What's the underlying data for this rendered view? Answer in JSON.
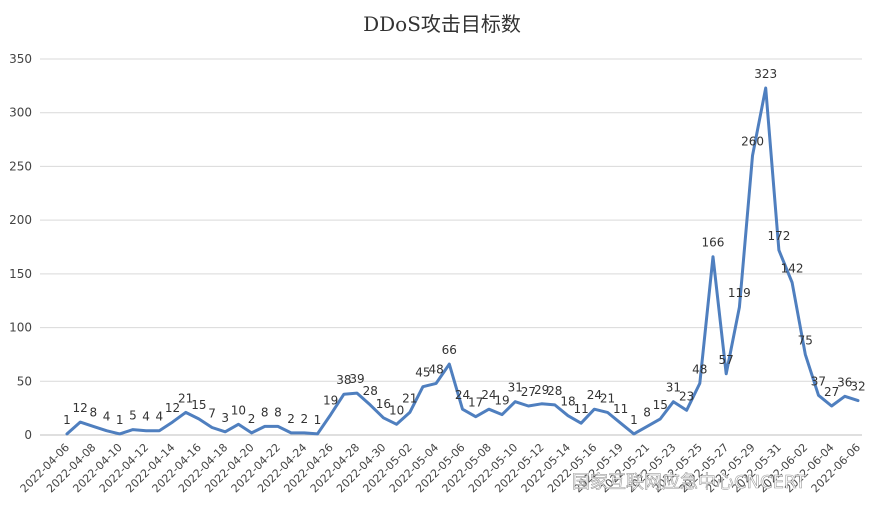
{
  "chart_data": {
    "type": "line",
    "title": "DDoS攻击目标数",
    "xlabel": "",
    "ylabel": "",
    "ylim": [
      0,
      350
    ],
    "yticks": [
      0,
      50,
      100,
      150,
      200,
      250,
      300,
      350
    ],
    "grid": true,
    "legend": "none",
    "line_color": "#4f7fbf",
    "x": [
      "2022-04-06",
      "2022-04-07",
      "2022-04-08",
      "2022-04-09",
      "2022-04-10",
      "2022-04-11",
      "2022-04-12",
      "2022-04-13",
      "2022-04-14",
      "2022-04-15",
      "2022-04-16",
      "2022-04-17",
      "2022-04-18",
      "2022-04-19",
      "2022-04-20",
      "2022-04-21",
      "2022-04-22",
      "2022-04-23",
      "2022-04-24",
      "2022-04-25",
      "2022-04-26",
      "2022-04-27",
      "2022-04-28",
      "2022-04-29",
      "2022-04-30",
      "2022-05-01",
      "2022-05-02",
      "2022-05-03",
      "2022-05-04",
      "2022-05-05",
      "2022-05-06",
      "2022-05-07",
      "2022-05-08",
      "2022-05-09",
      "2022-05-10",
      "2022-05-11",
      "2022-05-12",
      "2022-05-13",
      "2022-05-14",
      "2022-05-15",
      "2022-05-16",
      "2022-05-17",
      "2022-05-19",
      "2022-05-20",
      "2022-05-21",
      "2022-05-22",
      "2022-05-23",
      "2022-05-24",
      "2022-05-25",
      "2022-05-26",
      "2022-05-27",
      "2022-05-28",
      "2022-05-29",
      "2022-05-30",
      "2022-05-31",
      "2022-06-01",
      "2022-06-02",
      "2022-06-03",
      "2022-06-04",
      "2022-06-05",
      "2022-06-06"
    ],
    "xtick_labels": [
      "2022-04-06",
      "2022-04-08",
      "2022-04-10",
      "2022-04-12",
      "2022-04-14",
      "2022-04-16",
      "2022-04-18",
      "2022-04-20",
      "2022-04-22",
      "2022-04-24",
      "2022-04-26",
      "2022-04-28",
      "2022-04-30",
      "2022-05-02",
      "2022-05-04",
      "2022-05-06",
      "2022-05-08",
      "2022-05-10",
      "2022-05-12",
      "2022-05-14",
      "2022-05-16",
      "2022-05-19",
      "2022-05-21",
      "2022-05-23",
      "2022-05-25",
      "2022-05-27",
      "2022-05-29",
      "2022-05-31",
      "2022-06-02",
      "2022-06-04",
      "2022-06-06"
    ],
    "values": [
      1,
      12,
      8,
      4,
      1,
      5,
      4,
      4,
      12,
      21,
      15,
      7,
      3,
      10,
      2,
      8,
      8,
      2,
      2,
      1,
      19,
      38,
      39,
      28,
      16,
      10,
      21,
      45,
      48,
      66,
      24,
      17,
      24,
      19,
      31,
      27,
      29,
      28,
      18,
      11,
      24,
      21,
      11,
      1,
      8,
      15,
      31,
      23,
      48,
      166,
      57,
      119,
      260,
      323,
      172,
      142,
      75,
      37,
      27,
      36,
      32
    ]
  },
  "watermark": "国家互联网应急中心CNCERT"
}
